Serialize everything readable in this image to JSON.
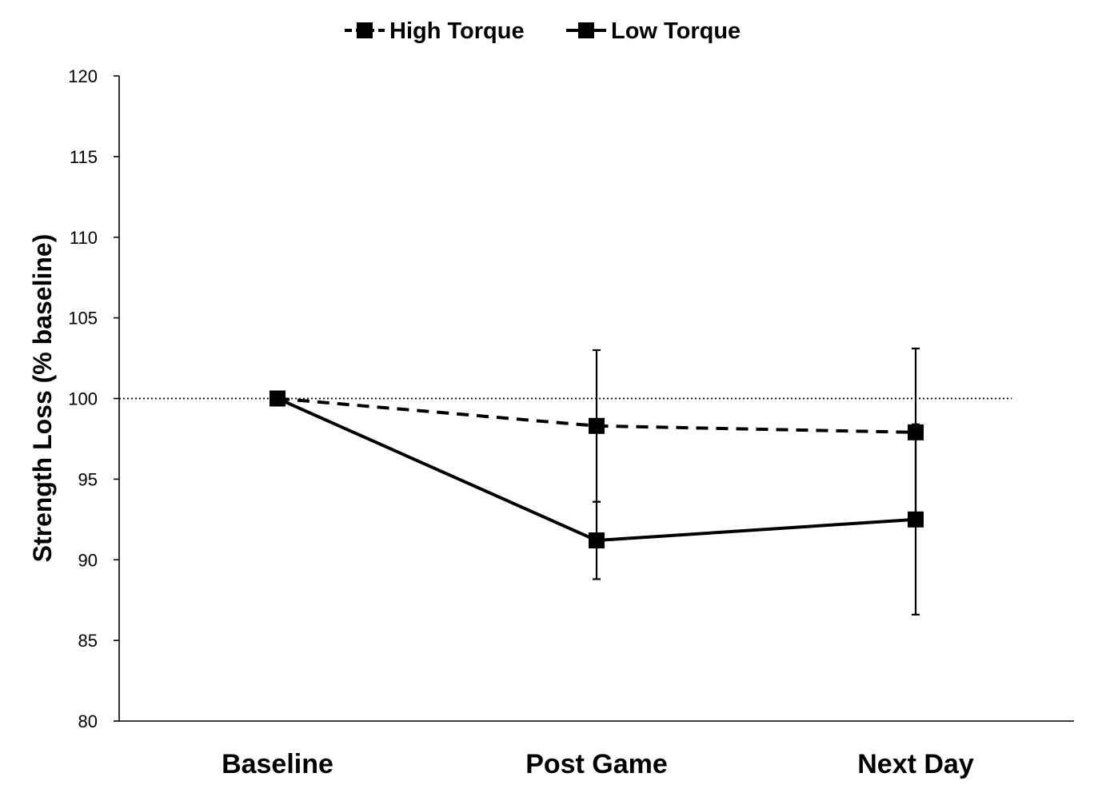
{
  "chart_data": {
    "type": "line",
    "categories": [
      "Baseline",
      "Post Game",
      "Next Day"
    ],
    "ylabel": "Strength Loss (% baseline)",
    "xlabel": "",
    "ylim": [
      80,
      120
    ],
    "yticks": [
      80,
      85,
      90,
      95,
      100,
      105,
      110,
      115,
      120
    ],
    "legend_position": "top-center",
    "reference_line": {
      "y": 100,
      "style": "dotted"
    },
    "series": [
      {
        "name": "High Torque",
        "line_style": "dashed",
        "values": [
          100,
          98.3,
          97.9
        ],
        "error": [
          null,
          4.7,
          5.2
        ],
        "color": "#000000"
      },
      {
        "name": "Low Torque",
        "line_style": "solid",
        "values": [
          100,
          91.2,
          92.5
        ],
        "error": [
          null,
          2.4,
          5.9
        ],
        "color": "#000000"
      }
    ]
  }
}
